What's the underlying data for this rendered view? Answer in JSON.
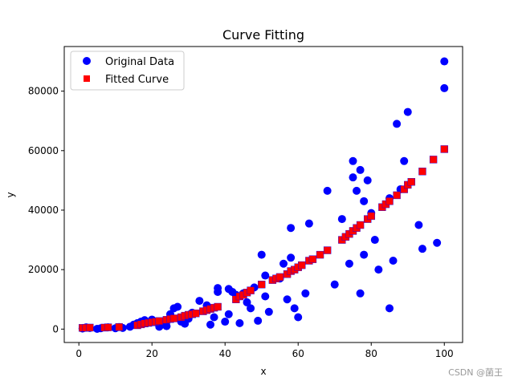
{
  "watermark": "CSDN @菌王",
  "chart_data": {
    "type": "scatter",
    "title": "Curve Fitting",
    "xlabel": "x",
    "ylabel": "y",
    "xlim": [
      -4,
      105
    ],
    "ylim": [
      -4500,
      95000
    ],
    "xticks": [
      0,
      20,
      40,
      60,
      80,
      100
    ],
    "yticks": [
      0,
      20000,
      40000,
      60000,
      80000
    ],
    "grid": false,
    "legend_placement": "top-left",
    "series": [
      {
        "name": "Original Data",
        "marker": "circle",
        "color": "#0000ff",
        "points": [
          [
            1,
            200
          ],
          [
            2,
            600
          ],
          [
            3,
            400
          ],
          [
            5,
            100
          ],
          [
            6,
            300
          ],
          [
            8,
            600
          ],
          [
            10,
            300
          ],
          [
            11,
            700
          ],
          [
            12,
            400
          ],
          [
            14,
            800
          ],
          [
            15,
            1500
          ],
          [
            16,
            2000
          ],
          [
            17,
            2500
          ],
          [
            18,
            3000
          ],
          [
            20,
            3200
          ],
          [
            21,
            2400
          ],
          [
            22,
            800
          ],
          [
            23,
            1600
          ],
          [
            24,
            1000
          ],
          [
            25,
            5000
          ],
          [
            26,
            7000
          ],
          [
            27,
            7500
          ],
          [
            28,
            2500
          ],
          [
            29,
            1800
          ],
          [
            30,
            3500
          ],
          [
            31,
            5500
          ],
          [
            33,
            9500
          ],
          [
            35,
            8000
          ],
          [
            36,
            1500
          ],
          [
            37,
            4000
          ],
          [
            38,
            12500
          ],
          [
            38,
            13800
          ],
          [
            40,
            2500
          ],
          [
            41,
            5000
          ],
          [
            41,
            13500
          ],
          [
            42,
            12500
          ],
          [
            43,
            11500
          ],
          [
            44,
            2000
          ],
          [
            45,
            12000
          ],
          [
            46,
            9000
          ],
          [
            47,
            7000
          ],
          [
            48,
            14000
          ],
          [
            49,
            2800
          ],
          [
            50,
            25000
          ],
          [
            51,
            18000
          ],
          [
            51,
            11000
          ],
          [
            52,
            5800
          ],
          [
            55,
            17000
          ],
          [
            56,
            22000
          ],
          [
            57,
            10000
          ],
          [
            58,
            24000
          ],
          [
            58,
            34000
          ],
          [
            59,
            7000
          ],
          [
            60,
            4000
          ],
          [
            62,
            12000
          ],
          [
            63,
            35500
          ],
          [
            68,
            46500
          ],
          [
            70,
            15000
          ],
          [
            72,
            37000
          ],
          [
            74,
            22000
          ],
          [
            75,
            51000
          ],
          [
            75,
            56500
          ],
          [
            76,
            46500
          ],
          [
            77,
            53500
          ],
          [
            77,
            12000
          ],
          [
            78,
            43000
          ],
          [
            78,
            25000
          ],
          [
            79,
            50000
          ],
          [
            80,
            39000
          ],
          [
            81,
            30000
          ],
          [
            82,
            20000
          ],
          [
            85,
            44000
          ],
          [
            85,
            7000
          ],
          [
            86,
            23000
          ],
          [
            87,
            69000
          ],
          [
            88,
            47000
          ],
          [
            89,
            56500
          ],
          [
            90,
            73000
          ],
          [
            93,
            35000
          ],
          [
            94,
            27000
          ],
          [
            98,
            29000
          ],
          [
            100,
            90000
          ],
          [
            100,
            81000
          ]
        ]
      },
      {
        "name": "Fitted Curve",
        "marker": "square",
        "color": "#ff0000",
        "points": [
          [
            1,
            400
          ],
          [
            2,
            450
          ],
          [
            3,
            500
          ],
          [
            7,
            500
          ],
          [
            8,
            600
          ],
          [
            11,
            700
          ],
          [
            16,
            1300
          ],
          [
            17,
            1600
          ],
          [
            18,
            1900
          ],
          [
            19,
            2100
          ],
          [
            20,
            2300
          ],
          [
            21,
            2500
          ],
          [
            22,
            2700
          ],
          [
            24,
            3100
          ],
          [
            25,
            3400
          ],
          [
            26,
            3600
          ],
          [
            28,
            4000
          ],
          [
            29,
            4500
          ],
          [
            30,
            4800
          ],
          [
            31,
            5000
          ],
          [
            32,
            5300
          ],
          [
            34,
            6000
          ],
          [
            35,
            6400
          ],
          [
            36,
            6800
          ],
          [
            37,
            7200
          ],
          [
            38,
            7500
          ],
          [
            43,
            10000
          ],
          [
            44,
            11000
          ],
          [
            45,
            11500
          ],
          [
            46,
            12300
          ],
          [
            47,
            13000
          ],
          [
            50,
            15000
          ],
          [
            53,
            16500
          ],
          [
            54,
            17000
          ],
          [
            55,
            17500
          ],
          [
            57,
            18500
          ],
          [
            58,
            19500
          ],
          [
            59,
            20000
          ],
          [
            60,
            20800
          ],
          [
            61,
            21500
          ],
          [
            63,
            23000
          ],
          [
            64,
            23500
          ],
          [
            66,
            25000
          ],
          [
            68,
            26500
          ],
          [
            72,
            30000
          ],
          [
            73,
            31000
          ],
          [
            74,
            32000
          ],
          [
            75,
            33000
          ],
          [
            76,
            34000
          ],
          [
            77,
            35000
          ],
          [
            79,
            37000
          ],
          [
            80,
            38000
          ],
          [
            83,
            41000
          ],
          [
            84,
            42000
          ],
          [
            85,
            43000
          ],
          [
            87,
            45000
          ],
          [
            89,
            47000
          ],
          [
            90,
            48500
          ],
          [
            91,
            49500
          ],
          [
            94,
            53000
          ],
          [
            97,
            57000
          ],
          [
            100,
            60500
          ]
        ]
      }
    ]
  }
}
